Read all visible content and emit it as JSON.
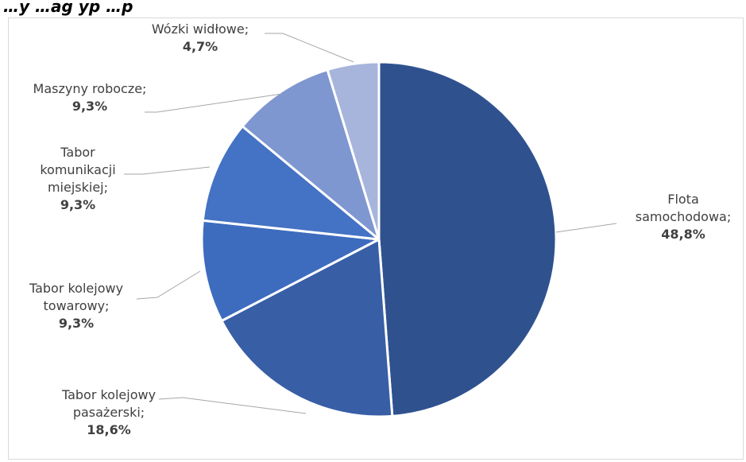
{
  "page": {
    "title_fragment": "…y                       …ag yp                 …p"
  },
  "chart_data": {
    "type": "pie",
    "title": "",
    "start_angle_deg": 0,
    "direction": "clockwise",
    "legend": "none",
    "slices": [
      {
        "name": "Flota samochodowa",
        "value": 48.8,
        "label_lines": [
          "Flota",
          "samochodowa;"
        ],
        "pct_label": "48,8%",
        "color": "#2f528f"
      },
      {
        "name": "Tabor kolejowy pasażerski",
        "value": 18.6,
        "label_lines": [
          "Tabor kolejowy",
          "pasażerski;"
        ],
        "pct_label": "18,6%",
        "color": "#385ea6"
      },
      {
        "name": "Tabor kolejowy towarowy",
        "value": 9.3,
        "label_lines": [
          "Tabor kolejowy",
          "towarowy;"
        ],
        "pct_label": "9,3%",
        "color": "#3d6cbf"
      },
      {
        "name": "Tabor komunikacji miejskiej",
        "value": 9.3,
        "label_lines": [
          "Tabor",
          "komunikacji",
          "miejskiej;"
        ],
        "pct_label": "9,3%",
        "color": "#4472c4"
      },
      {
        "name": "Maszyny robocze",
        "value": 9.3,
        "label_lines": [
          "Maszyny robocze;"
        ],
        "pct_label": "9,3%",
        "color": "#7f97d0"
      },
      {
        "name": "Wózki widłowe",
        "value": 4.7,
        "label_lines": [
          "Wózki widłowe;"
        ],
        "pct_label": "4,7%",
        "color": "#a7b5dc"
      }
    ]
  }
}
